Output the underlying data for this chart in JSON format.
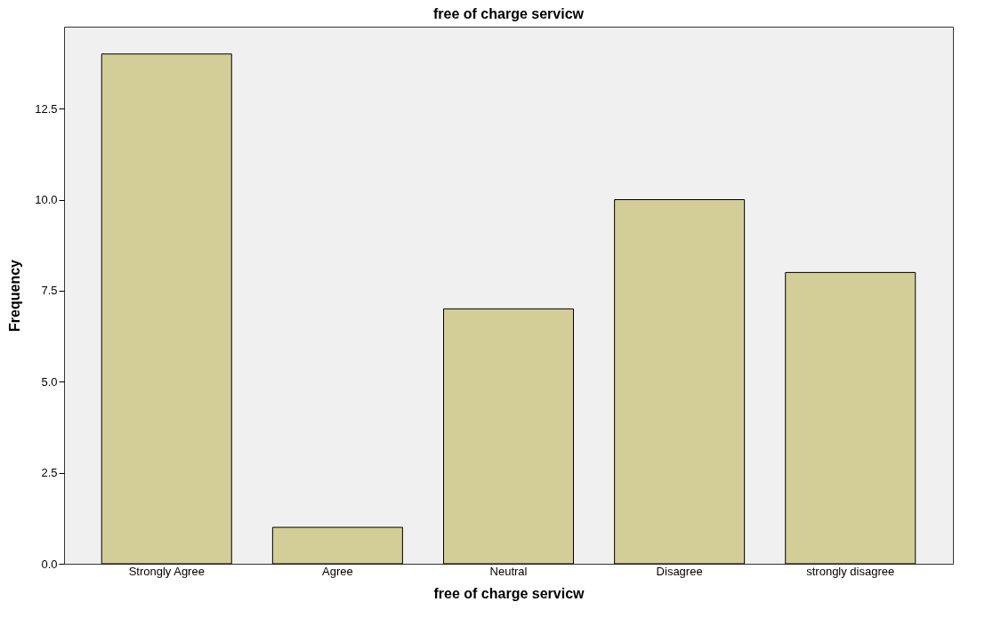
{
  "chart_data": {
    "type": "bar",
    "title": "free of charge servicw",
    "xlabel": "free of charge servicw",
    "ylabel": "Frequency",
    "categories": [
      "Strongly Agree",
      "Agree",
      "Neutral",
      "Disagree",
      "strongly disagree"
    ],
    "values": [
      14,
      1,
      7,
      10,
      8
    ],
    "color": "#d3ce98",
    "ylim": [
      0,
      14.75
    ],
    "yticks": [
      {
        "value": 0,
        "label": "0.0"
      },
      2.5,
      {
        "value": 5,
        "label": "5.0"
      },
      7.5,
      {
        "value": 10,
        "label": "10.0"
      },
      12.5
    ],
    "grid": false
  }
}
